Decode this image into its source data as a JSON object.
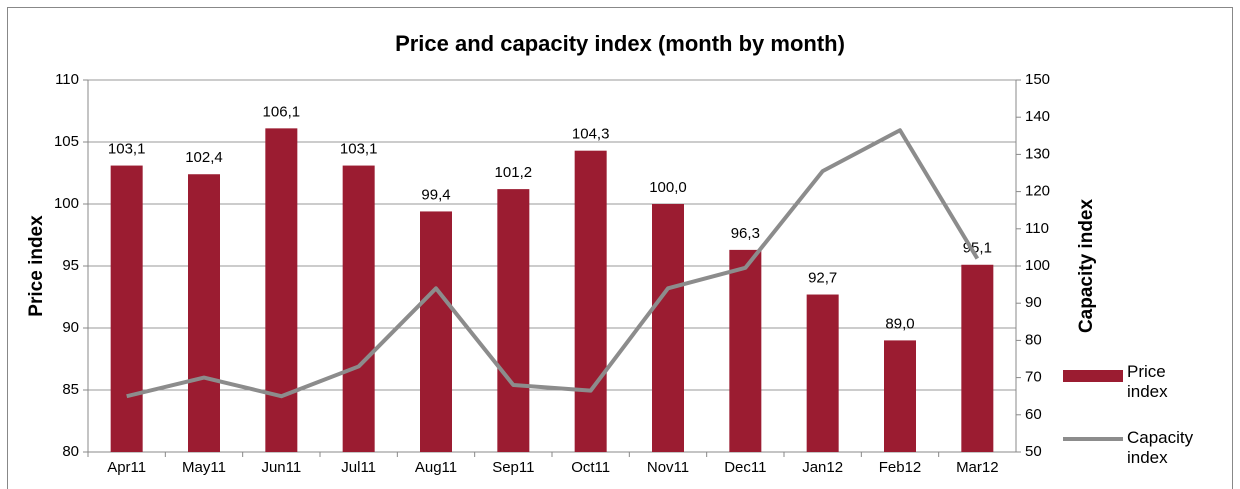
{
  "chart_data": {
    "type": "bar_line",
    "title": "Price and capacity index (month by month)",
    "ylabel": "Price index",
    "y2label": "Capacity index",
    "categories": [
      "Apr11",
      "May11",
      "Jun11",
      "Jul11",
      "Aug11",
      "Sep11",
      "Oct11",
      "Nov11",
      "Dec11",
      "Jan12",
      "Feb12",
      "Mar12"
    ],
    "series": [
      {
        "name": "Price index",
        "color": "#9b1c31",
        "type": "bar",
        "values": [
          103.1,
          102.4,
          106.1,
          103.1,
          99.4,
          101.2,
          104.3,
          100.0,
          96.3,
          92.7,
          89.0,
          95.1
        ],
        "value_labels": [
          "103,1",
          "102,4",
          "106,1",
          "103,1",
          "99,4",
          "101,2",
          "104,3",
          "100,0",
          "96,3",
          "92,7",
          "89,0",
          "95,1"
        ]
      },
      {
        "name": "Capacity index",
        "color": "#8c8c8c",
        "type": "line",
        "axis": "y2",
        "values": [
          65,
          70,
          65,
          73,
          94,
          68,
          66.5,
          94,
          99.5,
          125.5,
          136.5,
          102
        ]
      }
    ],
    "ylim": [
      80,
      110
    ],
    "yticks": [
      80,
      85,
      90,
      95,
      100,
      105,
      110
    ],
    "y2lim": [
      50,
      150
    ],
    "y2ticks": [
      50,
      60,
      70,
      80,
      90,
      100,
      110,
      120,
      130,
      140,
      150
    ],
    "grid": true,
    "legend": "right"
  }
}
